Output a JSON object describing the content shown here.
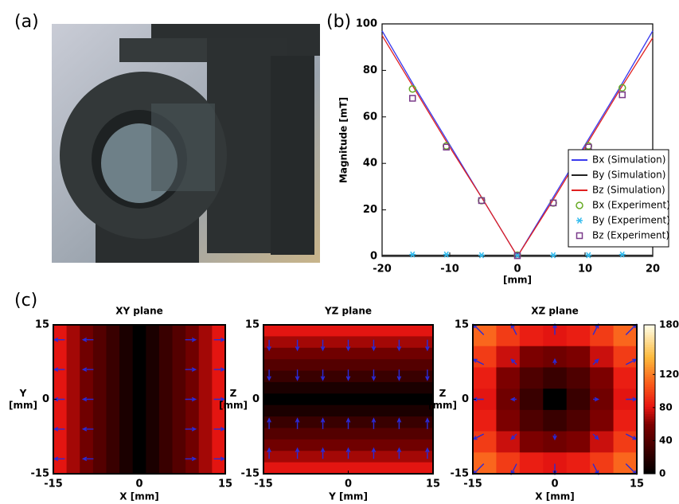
{
  "panel_labels": [
    "(a)",
    "(b)",
    "(c)"
  ],
  "chart_data": [
    {
      "type": "line",
      "xlabel": "[mm]",
      "ylabel": "Magnitude [mT]",
      "xlim": [
        -20,
        20
      ],
      "ylim": [
        0,
        100
      ],
      "xticks": [
        -20,
        -10,
        0,
        10,
        20
      ],
      "yticks": [
        0,
        20,
        40,
        60,
        80,
        100
      ],
      "legend": "lower right",
      "series": [
        {
          "name": "Bx (Simulation)",
          "color": "#3a3aee",
          "x": [
            -20,
            -15,
            -10,
            -5,
            0,
            5,
            10,
            15,
            20
          ],
          "values": [
            97,
            72,
            48,
            24,
            0,
            24,
            48,
            72,
            97
          ]
        },
        {
          "name": "By (Simulation)",
          "color": "#222222",
          "x": [
            -20,
            0,
            20
          ],
          "values": [
            0.5,
            0.5,
            0.5
          ]
        },
        {
          "name": "Bz (Simulation)",
          "color": "#e02020",
          "x": [
            -20,
            -15,
            -10,
            -5,
            0,
            5,
            10,
            15,
            20
          ],
          "values": [
            95,
            71,
            47,
            24,
            0,
            23,
            47,
            71,
            94
          ]
        },
        {
          "name": "Bx (Experiment)",
          "color": "#66aa22",
          "marker": "circle",
          "x": [
            -15.5,
            -10.5,
            -5.3,
            0,
            5.3,
            10.5,
            15.5
          ],
          "values": [
            72,
            47.5,
            24,
            0.5,
            23,
            47.5,
            72.5
          ]
        },
        {
          "name": "By (Experiment)",
          "color": "#33bbee",
          "marker": "star",
          "x": [
            -15.5,
            -10.5,
            -5.3,
            0,
            5.3,
            10.5,
            15.5
          ],
          "values": [
            0.8,
            0.8,
            0.5,
            0.5,
            0.5,
            0.5,
            0.8
          ]
        },
        {
          "name": "Bz (Experiment)",
          "color": "#7a3a8a",
          "marker": "square",
          "x": [
            -15.5,
            -10.5,
            -5.3,
            0,
            5.3,
            10.5,
            15.5
          ],
          "values": [
            68,
            47,
            24,
            0.3,
            23,
            47,
            69.5
          ]
        }
      ]
    },
    {
      "type": "heatmap",
      "title": "XY plane",
      "xlabel": "X [mm]",
      "ylabel": [
        "Y",
        "[mm]"
      ],
      "xlim": [
        -15,
        15
      ],
      "ylim": [
        -15,
        15
      ],
      "xticks": [
        -15,
        0,
        15
      ],
      "yticks": [
        -15,
        0,
        15
      ],
      "clim": [
        0,
        180
      ],
      "z": [
        [
          80,
          67,
          53,
          40,
          27,
          13,
          0,
          13,
          27,
          40,
          53,
          67,
          80
        ]
      ],
      "quiver": {
        "x": [
          -13,
          -8,
          8,
          13
        ],
        "y": [
          12,
          6,
          0,
          -6,
          -12
        ],
        "u": [
          -1,
          -1,
          1,
          1
        ],
        "v": [
          0,
          0,
          0,
          0,
          0
        ]
      }
    },
    {
      "type": "heatmap",
      "title": "YZ plane",
      "xlabel": "Y [mm]",
      "ylabel": [
        "Z",
        "[mm]"
      ],
      "xlim": [
        -15,
        15
      ],
      "ylim": [
        -15,
        15
      ],
      "xticks": [
        -15,
        0,
        15
      ],
      "yticks": [
        -15,
        0,
        15
      ],
      "clim": [
        0,
        180
      ],
      "z": [
        [
          80
        ],
        [
          67
        ],
        [
          53
        ],
        [
          40
        ],
        [
          27
        ],
        [
          13
        ],
        [
          0
        ],
        [
          13
        ],
        [
          27
        ],
        [
          40
        ],
        [
          53
        ],
        [
          67
        ],
        [
          80
        ]
      ],
      "quiver": {
        "x": [
          -14,
          -9,
          -4.5,
          0,
          4.5,
          9,
          14
        ],
        "y": [
          12,
          6,
          -6,
          -12
        ],
        "u": [
          0,
          0,
          0,
          0,
          0,
          0,
          0
        ],
        "v": [
          -1,
          -1,
          1,
          1
        ]
      }
    },
    {
      "type": "heatmap",
      "title": "XZ plane",
      "xlabel": "X [mm]",
      "ylabel": [
        "Z",
        "[mm]"
      ],
      "xlim": [
        -15,
        15
      ],
      "ylim": [
        -15,
        15
      ],
      "xticks": [
        -15,
        0,
        15
      ],
      "yticks": [
        -15,
        0,
        15
      ],
      "clim": [
        0,
        180
      ],
      "z": [
        [
          112,
          96,
          84,
          80,
          84,
          96,
          112
        ],
        [
          96,
          75,
          59,
          53,
          59,
          75,
          96
        ],
        [
          84,
          59,
          37,
          27,
          37,
          59,
          84
        ],
        [
          80,
          53,
          27,
          0,
          27,
          53,
          80
        ],
        [
          84,
          59,
          37,
          27,
          37,
          59,
          84
        ],
        [
          96,
          75,
          59,
          53,
          59,
          75,
          96
        ],
        [
          112,
          96,
          84,
          80,
          84,
          96,
          112
        ]
      ],
      "quiver": {
        "x": [
          -13,
          -7,
          0,
          7,
          13
        ],
        "y": [
          13,
          7,
          0,
          -7,
          -13
        ],
        "u": [
          -1,
          -0.5,
          0,
          0.5,
          1
        ],
        "v": [
          1,
          0.5,
          0,
          -0.5,
          -1
        ]
      },
      "colorbar": {
        "ticks": [
          0,
          40,
          80,
          120,
          180
        ]
      }
    }
  ]
}
